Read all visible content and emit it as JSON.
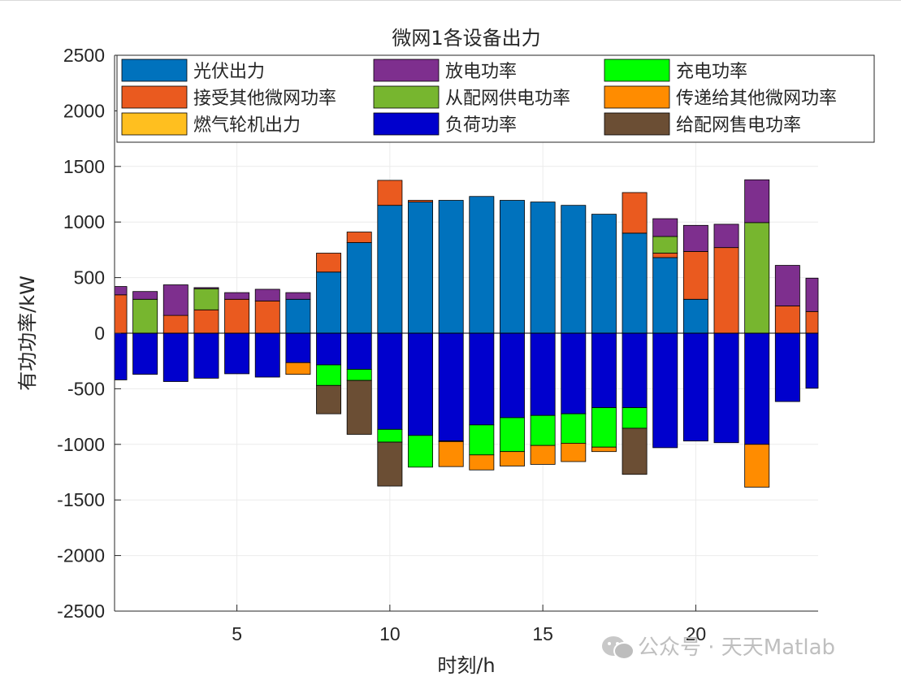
{
  "watermark": "公众号 · 天天Matlab",
  "chart_data": {
    "type": "bar",
    "stacked": true,
    "title": "微网1各设备出力",
    "xlabel": "时刻/h",
    "ylabel": "有功功率/kW",
    "xlim": [
      1,
      24
    ],
    "ylim": [
      -2500,
      2500
    ],
    "xticks": [
      5,
      10,
      15,
      20
    ],
    "yticks": [
      -2500,
      -2000,
      -1500,
      -1000,
      -500,
      0,
      500,
      1000,
      1500,
      2000,
      2500
    ],
    "grid": true,
    "legend_position": "top",
    "categories": [
      1,
      2,
      3,
      4,
      5,
      6,
      7,
      8,
      9,
      10,
      11,
      12,
      13,
      14,
      15,
      16,
      17,
      18,
      19,
      20,
      21,
      22,
      23,
      24
    ],
    "positive_series": [
      {
        "name": "光伏出力",
        "color": "#0072BD",
        "values": [
          0,
          0,
          0,
          0,
          0,
          0,
          305,
          550,
          815,
          1150,
          1180,
          1195,
          1230,
          1195,
          1180,
          1150,
          1070,
          900,
          680,
          305,
          0,
          0,
          0,
          0
        ]
      },
      {
        "name": "接受其他微网功率",
        "color": "#EA5A1F",
        "values": [
          345,
          0,
          160,
          210,
          305,
          290,
          0,
          170,
          95,
          225,
          15,
          0,
          0,
          0,
          0,
          0,
          0,
          365,
          40,
          430,
          770,
          0,
          245,
          195
        ]
      },
      {
        "name": "从配网供电功率",
        "color": "#77B62F",
        "values": [
          0,
          305,
          0,
          190,
          0,
          0,
          0,
          0,
          0,
          0,
          0,
          0,
          0,
          0,
          0,
          0,
          0,
          0,
          150,
          0,
          0,
          995,
          0,
          0
        ]
      },
      {
        "name": "燃气轮机出力",
        "color": "#FFBF1F",
        "values": [
          0,
          0,
          0,
          0,
          0,
          0,
          0,
          0,
          0,
          0,
          0,
          0,
          0,
          0,
          0,
          0,
          0,
          0,
          0,
          0,
          0,
          0,
          0,
          0
        ]
      },
      {
        "name": "放电功率",
        "color": "#7E2F8E",
        "values": [
          75,
          70,
          275,
          10,
          60,
          105,
          60,
          0,
          0,
          0,
          0,
          0,
          0,
          0,
          0,
          0,
          0,
          0,
          160,
          235,
          210,
          385,
          365,
          300
        ]
      }
    ],
    "negative_series": [
      {
        "name": "负荷功率",
        "color": "#0000CD",
        "values": [
          -420,
          -370,
          -435,
          -405,
          -365,
          -395,
          -265,
          -285,
          -325,
          -865,
          -920,
          -970,
          -825,
          -760,
          -740,
          -725,
          -670,
          -670,
          -1030,
          -970,
          -985,
          -1000,
          -615,
          -495
        ]
      },
      {
        "name": "充电功率",
        "color": "#00FF00",
        "values": [
          0,
          0,
          0,
          0,
          0,
          0,
          0,
          -185,
          -100,
          -115,
          -285,
          -5,
          -270,
          -305,
          -270,
          -265,
          -355,
          -185,
          0,
          0,
          0,
          0,
          0,
          0
        ]
      },
      {
        "name": "传递给其他微网功率",
        "color": "#FF8C00",
        "values": [
          0,
          0,
          0,
          0,
          0,
          0,
          -105,
          0,
          0,
          0,
          0,
          -225,
          -135,
          -130,
          -170,
          -165,
          -40,
          0,
          0,
          0,
          0,
          -385,
          0,
          0
        ]
      },
      {
        "name": "给配网售电功率",
        "color": "#6B4E34",
        "values": [
          0,
          0,
          0,
          0,
          0,
          0,
          0,
          -255,
          -485,
          -395,
          0,
          0,
          0,
          0,
          0,
          0,
          0,
          -415,
          0,
          0,
          0,
          0,
          0,
          0
        ]
      }
    ],
    "legend_entries": [
      {
        "name": "光伏出力",
        "color": "#0072BD"
      },
      {
        "name": "放电功率",
        "color": "#7E2F8E"
      },
      {
        "name": "充电功率",
        "color": "#00FF00"
      },
      {
        "name": "接受其他微网功率",
        "color": "#EA5A1F"
      },
      {
        "name": "从配网供电功率",
        "color": "#77B62F"
      },
      {
        "name": "传递给其他微网功率",
        "color": "#FF8C00"
      },
      {
        "name": "燃气轮机出力",
        "color": "#FFBF1F"
      },
      {
        "name": "负荷功率",
        "color": "#0000CD"
      },
      {
        "name": "给配网售电功率",
        "color": "#6B4E34"
      }
    ]
  }
}
